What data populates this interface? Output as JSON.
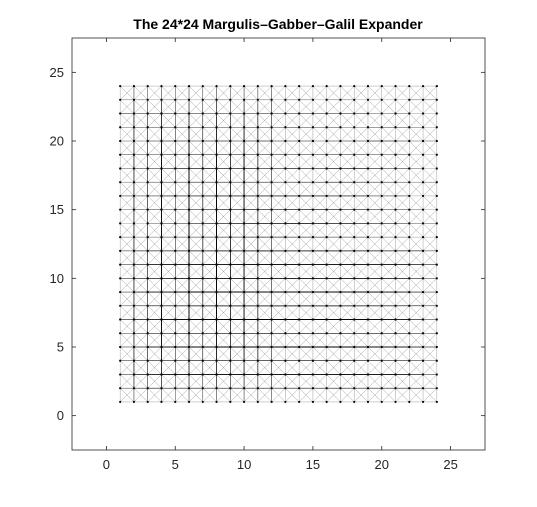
{
  "chart_data": {
    "type": "graph",
    "title": "The 24*24 Margulis–Gabber–Galil Expander",
    "n": 24,
    "vertex_range": [
      1,
      24
    ],
    "xlim": [
      -2.5,
      27.5
    ],
    "ylim": [
      -2.5,
      27.5
    ],
    "x_ticks": [
      0,
      5,
      10,
      15,
      20,
      25
    ],
    "y_ticks": [
      0,
      5,
      10,
      15,
      20,
      25
    ],
    "x_tick_labels": [
      "0",
      "5",
      "10",
      "15",
      "20",
      "25"
    ],
    "y_tick_labels": [
      "0",
      "5",
      "10",
      "15",
      "20",
      "25"
    ],
    "box": true,
    "grid": false,
    "edge_color": "#000000",
    "vertex_color": "#000000"
  }
}
